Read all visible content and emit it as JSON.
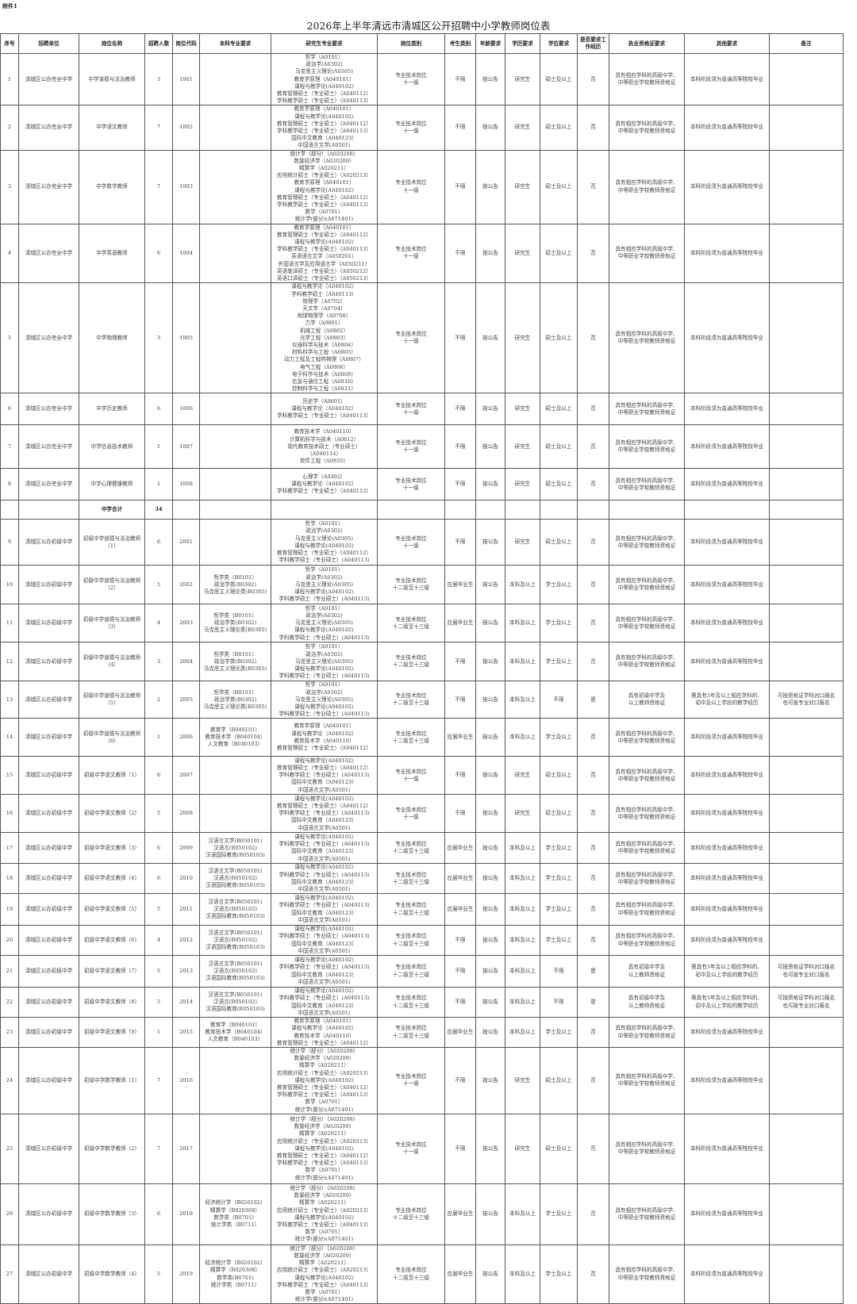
{
  "attachment_label": "附件1",
  "title": "2026年上半年清远市清城区公开招聘中小学教师岗位表",
  "headers": [
    "序号",
    "招聘单位",
    "岗位名称",
    "招聘人数",
    "岗位代码",
    "本科专业要求",
    "研究生专业要求",
    "岗位类别",
    "考生类别",
    "年龄要求",
    "学历要求",
    "学位要求",
    "是否要求工作经历",
    "执业资格证要求",
    "其他要求",
    "备注"
  ],
  "rows": [
    {
      "no": "1",
      "unit": "清城区公办完全中学",
      "post": "中学道德与法治教师",
      "num": "3",
      "code": "1001",
      "ug": [],
      "pg": [
        "哲学（A0101）",
        "政治学(A0302)",
        "马克思主义理论(A0305)",
        "教育学原理（A040101）",
        "课程与教学论(A040102)",
        "教育管理硕士（专业硕士）（A040112）",
        "学科教学硕士（专业硕士）（A040113）"
      ],
      "cat": [
        "专业技术岗位",
        "十一级"
      ],
      "cand": "不限",
      "age": "按公告",
      "edu": "研究生",
      "deg": "硕士及以上",
      "exp": "否",
      "cert": [
        "具有相应学科的高级中学、",
        "中等职业学校教师资格证"
      ],
      "other": [
        "本科阶段须为普通高等院校毕业"
      ],
      "note": []
    },
    {
      "no": "2",
      "unit": "清城区公办完全中学",
      "post": "中学语文教师",
      "num": "7",
      "code": "1002",
      "ug": [],
      "pg": [
        "教育学原理（A040101）",
        "课程与教学论(A040102)",
        "教育管理硕士（专业硕士）（A040112）",
        "学科教学硕士（专业硕士）（A040113）",
        "国际中文教育（A040123）",
        "中国语言文学(A0501)"
      ],
      "cat": [
        "专业技术岗位",
        "十一级"
      ],
      "cand": "不限",
      "age": "按公告",
      "edu": "研究生",
      "deg": "硕士及以上",
      "exp": "否",
      "cert": [
        "具有相应学科的高级中学、",
        "中等职业学校教师资格证"
      ],
      "other": [
        "本科阶段须为普通高等院校毕业"
      ],
      "note": []
    },
    {
      "no": "3",
      "unit": "清城区公办完全中学",
      "post": "中学数学教师",
      "num": "7",
      "code": "1003",
      "ug": [],
      "pg": [
        "统计学（部分）（A020208）",
        "数量经济学（A020209）",
        "精算学（A020211）",
        "应用统计硕士（专业硕士）（A020213）",
        "教育学原理（A040101）",
        "课程与教学论(A040102)",
        "教育管理硕士（专业硕士）（A040112）",
        "学科教学硕士（专业硕士）（A040113）",
        "数学（A0701）",
        "统计学(部分)(A071401)"
      ],
      "cat": [
        "专业技术岗位",
        "十一级"
      ],
      "cand": "不限",
      "age": "按公告",
      "edu": "研究生",
      "deg": "硕士及以上",
      "exp": "否",
      "cert": [
        "具有相应学科的高级中学、",
        "中等职业学校教师资格证"
      ],
      "other": [
        "本科阶段须为普通高等院校毕业"
      ],
      "note": []
    },
    {
      "no": "4",
      "unit": "清城区公办完全中学",
      "post": "中学英语教师",
      "num": "6",
      "code": "1004",
      "ug": [],
      "pg": [
        "教育学原理（A040101）",
        "教育管理硕士（专业硕士）（A040112）",
        "课程与教学论(A040102)",
        "学科教学硕士（专业硕士）（A040113）",
        "英语语言文学（A050201）",
        "外国语言学及应用语言学（A050211）",
        "英语笔译硕士（专业硕士）（A050212）",
        "英语口译硕士（专业硕士）（A050213）"
      ],
      "cat": [
        "专业技术岗位",
        "十一级"
      ],
      "cand": "不限",
      "age": "按公告",
      "edu": "研究生",
      "deg": "硕士及以上",
      "exp": "否",
      "cert": [
        "具有相应学科的高级中学、",
        "中等职业学校教师资格证"
      ],
      "other": [
        "本科阶段须为普通高等院校毕业"
      ],
      "note": []
    },
    {
      "no": "5",
      "unit": "清城区公办完全中学",
      "post": "中学物理教师",
      "num": "3",
      "code": "1005",
      "ug": [],
      "pg": [
        "课程与教学论（A040102）",
        "学科教学硕士（A040113）",
        "物理学（A0702）",
        "天文学（A0704）",
        "地球物理学（A0708）",
        "力学（A0801）",
        "机械工程（A0802）",
        "光学工程（A0803）",
        "仪器科学与技术（A0804）",
        "材料科学与工程（A0805）",
        "动力工程及工程热物理（A0807）",
        "电气工程（A0808）",
        "电子科学与技术（A0809）",
        "信息与通信工程（A0810）",
        "控制科学与工程（A0811）"
      ],
      "cat": [
        "专业技术岗位",
        "十一级"
      ],
      "cand": "不限",
      "age": "按公告",
      "edu": "研究生",
      "deg": "硕士及以上",
      "exp": "否",
      "cert": [
        "具有相应学科的高级中学、",
        "中等职业学校教师资格证"
      ],
      "other": [
        "本科阶段须为普通高等院校毕业"
      ],
      "note": []
    },
    {
      "no": "6",
      "unit": "清城区公办完全中学",
      "post": "中学历史教师",
      "num": "6",
      "code": "1006",
      "ug": [],
      "pg": [
        "历史学（A0601）",
        "课程与教学论（A040102）",
        "学科教学硕士（专业硕士）（A040113）"
      ],
      "cat": [
        "专业技术岗位",
        "十一级"
      ],
      "cand": "不限",
      "age": "按公告",
      "edu": "研究生",
      "deg": "硕士及以上",
      "exp": "否",
      "cert": [
        "具有相应学科的高级中学、",
        "中等职业学校教师资格证"
      ],
      "other": [
        "本科阶段须为普通高等院校毕业"
      ],
      "note": []
    },
    {
      "no": "7",
      "unit": "清城区公办完全中学",
      "post": "中学信息技术教师",
      "num": "1",
      "code": "1007",
      "ug": [],
      "pg": [
        "教育技术学（A040110）",
        "计算机科学与技术（A0812）",
        "现代教育技术硕士（专业硕士）",
        "（A040114）",
        "软件工程（A0835）"
      ],
      "cat": [
        "专业技术岗位",
        "十一级"
      ],
      "cand": "不限",
      "age": "按公告",
      "edu": "研究生",
      "deg": "硕士及以上",
      "exp": "否",
      "cert": [
        "具有相应学科的高级中学、",
        "中等职业学校教师资格证"
      ],
      "other": [
        "本科阶段须为普通高等院校毕业"
      ],
      "note": []
    },
    {
      "no": "8",
      "unit": "清城区公办完全中学",
      "post": "中学心理健康教师",
      "num": "1",
      "code": "1008",
      "ug": [],
      "pg": [
        "心理学（A0402）",
        "课程与教学论（A040102）",
        "学科教学硕士（专业硕士）（A040113）"
      ],
      "cat": [
        "专业技术岗位",
        "十一级"
      ],
      "cand": "不限",
      "age": "按公告",
      "edu": "研究生",
      "deg": "硕士及以上",
      "exp": "否",
      "cert": [
        "具有相应学科的高级中学、",
        "中等职业学校教师资格证"
      ],
      "other": [
        "本科阶段须为普通高等院校毕业"
      ],
      "note": []
    },
    {
      "subtotal": true,
      "label": "中学合计",
      "num": "34"
    },
    {
      "no": "9",
      "unit": "清城区公办初级中学",
      "post": "初级中学道德与法治教师（1）",
      "num": "6",
      "code": "2001",
      "ug": [],
      "pg": [
        "哲学（A0101）",
        "政治学(A0302)",
        "马克思主义理论(A0305)",
        "课程与教学论(A040102)",
        "教育管理硕士（专业硕士）（A040112）",
        "学科教学硕士（专业硕士）(A040113)"
      ],
      "cat": [
        "专业技术岗位",
        "十一级"
      ],
      "cand": "不限",
      "age": "按公告",
      "edu": "研究生",
      "deg": "硕士及以上",
      "exp": "否",
      "cert": [
        "具有相应学科的高级中学、",
        "中等职业学校教师资格证"
      ],
      "other": [
        "本科阶段须为普通高等院校毕业"
      ],
      "note": []
    },
    {
      "no": "10",
      "unit": "清城区公办初级中学",
      "post": "初级中学道德与法治教师（2）",
      "num": "5",
      "code": "2002",
      "ug": [
        "哲学类（B0101）",
        "政治学类(B0302)",
        "马克思主义理论类(B0305)"
      ],
      "pg": [
        "哲学（A0101）",
        "政治学(A0302)",
        "马克思主义理论(A0305)",
        "课程与教学论(A040102)",
        "学科教学硕士（专业硕士）(A040113)"
      ],
      "cat": [
        "专业技术岗位",
        "十二级至十三级"
      ],
      "cand": "应届毕业生",
      "age": "按公告",
      "edu": "本科及以上",
      "deg": "学士及以上",
      "exp": "否",
      "cert": [
        "具有相应学科的高级中学、",
        "中等职业学校教师资格证"
      ],
      "other": [
        "本科阶段须为普通高等院校毕业"
      ],
      "note": []
    },
    {
      "no": "11",
      "unit": "清城区公办初级中学",
      "post": "初级中学道德与法治教师（3）",
      "num": "4",
      "code": "2003",
      "ug": [
        "哲学类（B0101）",
        "政治学类(B0302)",
        "马克思主义理论类(B0305)"
      ],
      "pg": [
        "哲学（A0101）",
        "政治学(A0302)",
        "马克思主义理论(A0305)",
        "课程与教学论(A040102)",
        "学科教学硕士（专业硕士）(A040113)"
      ],
      "cat": [
        "专业技术岗位",
        "十二级至十三级"
      ],
      "cand": "应届毕业生",
      "age": "按公告",
      "edu": "本科及以上",
      "deg": "学士及以上",
      "exp": "否",
      "cert": [
        "具有相应学科的高级中学、",
        "中等职业学校教师资格证"
      ],
      "other": [
        "本科阶段须为普通高等院校毕业"
      ],
      "note": []
    },
    {
      "no": "12",
      "unit": "清城区公办初级中学",
      "post": "初级中学道德与法治教师（4）",
      "num": "3",
      "code": "2004",
      "ug": [
        "哲学类（B0101）",
        "政治学类(B0302)",
        "马克思主义理论类(B0305)"
      ],
      "pg": [
        "哲学（A0101）",
        "政治学(A0302)",
        "马克思主义理论(A0305)",
        "课程与教学论(A040102)",
        "学科教学硕士（专业硕士）(A040113)"
      ],
      "cat": [
        "专业技术岗位",
        "十二级至十三级"
      ],
      "cand": "不限",
      "age": "按公告",
      "edu": "本科及以上",
      "deg": "学士及以上",
      "exp": "否",
      "cert": [
        "具有相应学科的高级中学、",
        "中等职业学校教师资格证"
      ],
      "other": [
        "本科阶段须为普通高等院校毕业"
      ],
      "note": []
    },
    {
      "no": "13",
      "unit": "清城区公办初级中学",
      "post": "初级中学道德与法治教师（5）",
      "num": "2",
      "code": "2005",
      "ug": [
        "哲学类（B0101）",
        "政治学类(B0302)",
        "马克思主义理论类(B0305)"
      ],
      "pg": [
        "哲学（A0101）",
        "政治学(A0302)",
        "马克思主义理论(A0305)",
        "课程与教学论(A040102)",
        "学科教学硕士（专业硕士）(A040113)"
      ],
      "cat": [
        "专业技术岗位",
        "十二级至十三级"
      ],
      "cand": "不限",
      "age": "按公告",
      "edu": "本科及以上",
      "deg": "不限",
      "exp": "是",
      "cert": [
        "具有初级中学及",
        "以上教师资格证"
      ],
      "other": [
        "需具有3年及以上相应学科的、",
        "初中及以上学段的教学经历"
      ],
      "note": [
        "可按资格证学科对口报名",
        "也可按专业对口报名"
      ]
    },
    {
      "no": "14",
      "unit": "清城区公办初级中学",
      "post": "初级中学道德与法治教师（6）",
      "num": "1",
      "code": "2006",
      "ug": [
        "教育学（B040101）",
        "教育技术学（B040104）",
        "人文教育（B040103）"
      ],
      "pg": [
        "教育学原理（A040101）",
        "课程与教学论（A040102）",
        "教育技术学（A040110）",
        "教育管理硕士（专业硕士）（A040112）"
      ],
      "cat": [
        "专业技术岗位",
        "十二级至十三级"
      ],
      "cand": "应届毕业生",
      "age": "按公告",
      "edu": "本科及以上",
      "deg": "学士及以上",
      "exp": "否",
      "cert": [
        "具有相应学科的高级中学、",
        "中等职业学校教师资格证"
      ],
      "other": [
        "本科阶段须为普通高等院校毕业"
      ],
      "note": []
    },
    {
      "no": "15",
      "unit": "清城区公办初级中学",
      "post": "初级中学语文教师（1）",
      "num": "6",
      "code": "2007",
      "ug": [],
      "pg": [
        "课程与教学论(A040102)",
        "教育管理硕士（专业硕士）（A040112）",
        "学科教学硕士（专业硕士）(A040113)",
        "国际中文教育（A040123）",
        "中国语言文学(A0501)"
      ],
      "cat": [
        "专业技术岗位",
        "十一级"
      ],
      "cand": "不限",
      "age": "按公告",
      "edu": "研究生",
      "deg": "硕士及以上",
      "exp": "否",
      "cert": [
        "具有相应学科的高级中学、",
        "中等职业学校教师资格证"
      ],
      "other": [
        "本科阶段须为普通高等院校毕业"
      ],
      "note": []
    },
    {
      "no": "16",
      "unit": "清城区公办初级中学",
      "post": "初级中学语文教师（2）",
      "num": "5",
      "code": "2008",
      "ug": [],
      "pg": [
        "课程与教学论(A040102)",
        "教育管理硕士（专业硕士）（A040112）",
        "学科教学硕士（专业硕士）(A040113)",
        "国际中文教育（A040123）",
        "中国语言文学(A0501)"
      ],
      "cat": [
        "专业技术岗位",
        "十一级"
      ],
      "cand": "不限",
      "age": "按公告",
      "edu": "研究生",
      "deg": "硕士及以上",
      "exp": "否",
      "cert": [
        "具有相应学科的高级中学、",
        "中等职业学校教师资格证"
      ],
      "other": [
        "本科阶段须为普通高等院校毕业"
      ],
      "note": []
    },
    {
      "no": "17",
      "unit": "清城区公办初级中学",
      "post": "初级中学语文教师（3）",
      "num": "6",
      "code": "2009",
      "ug": [
        "汉语言文学(B050101)",
        "汉语言(B050102)",
        "汉语国际教育(B050103)"
      ],
      "pg": [
        "课程与教学论(A040102)",
        "学科教学硕士（专业硕士）(A040113)",
        "国际中文教育（A040123）",
        "中国语言文学(A0501)"
      ],
      "cat": [
        "专业技术岗位",
        "十二级至十三级"
      ],
      "cand": "应届毕业生",
      "age": "按公告",
      "edu": "本科及以上",
      "deg": "学士及以上",
      "exp": "否",
      "cert": [
        "具有相应学科的高级中学、",
        "中等职业学校教师资格证"
      ],
      "other": [
        "本科阶段须为普通高等院校毕业"
      ],
      "note": []
    },
    {
      "no": "18",
      "unit": "清城区公办初级中学",
      "post": "初级中学语文教师（4）",
      "num": "6",
      "code": "2010",
      "ug": [
        "汉语言文学(B050101)",
        "汉语言(B050102)",
        "汉语国际教育(B050103)"
      ],
      "pg": [
        "课程与教学论(A040102)",
        "学科教学硕士（专业硕士）(A040113)",
        "国际中文教育（A040123）",
        "中国语言文学(A0501)"
      ],
      "cat": [
        "专业技术岗位",
        "十二级至十三级"
      ],
      "cand": "应届毕业生",
      "age": "按公告",
      "edu": "本科及以上",
      "deg": "学士及以上",
      "exp": "否",
      "cert": [
        "具有相应学科的高级中学、",
        "中等职业学校教师资格证"
      ],
      "other": [
        "本科阶段须为普通高等院校毕业"
      ],
      "note": []
    },
    {
      "no": "19",
      "unit": "清城区公办初级中学",
      "post": "初级中学语文教师（5）",
      "num": "5",
      "code": "2011",
      "ug": [
        "汉语言文学(B050101)",
        "汉语言(B050102)",
        "汉语国际教育(B050103)"
      ],
      "pg": [
        "课程与教学论(A040102)",
        "学科教学硕士（专业硕士）(A040113)",
        "国际中文教育（A040123）",
        "中国语言文学(A0501)"
      ],
      "cat": [
        "专业技术岗位",
        "十二级至十三级"
      ],
      "cand": "应届毕业生",
      "age": "按公告",
      "edu": "本科及以上",
      "deg": "学士及以上",
      "exp": "否",
      "cert": [
        "具有相应学科的高级中学、",
        "中等职业学校教师资格证"
      ],
      "other": [
        "本科阶段须为普通高等院校毕业"
      ],
      "note": []
    },
    {
      "no": "20",
      "unit": "清城区公办初级中学",
      "post": "初级中学语文教师（6）",
      "num": "4",
      "code": "2012",
      "ug": [
        "汉语言文学(B050101)",
        "汉语言(B050102)",
        "汉语国际教育(B050103)"
      ],
      "pg": [
        "课程与教学论(A040102)",
        "学科教学硕士（专业硕士）(A040113)",
        "国际中文教育（A040123）",
        "中国语言文学(A0501)"
      ],
      "cat": [
        "专业技术岗位",
        "十二级至十三级"
      ],
      "cand": "不限",
      "age": "按公告",
      "edu": "本科及以上",
      "deg": "学士及以上",
      "exp": "否",
      "cert": [
        "具有相应学科的高级中学、",
        "中等职业学校教师资格证"
      ],
      "other": [
        "本科阶段须为普通高等院校毕业"
      ],
      "note": []
    },
    {
      "no": "21",
      "unit": "清城区公办初级中学",
      "post": "初级中学语文教师（7）",
      "num": "5",
      "code": "2013",
      "ug": [
        "汉语言文学(B050101)",
        "汉语言(B050102)",
        "汉语国际教育(B050103)"
      ],
      "pg": [
        "课程与教学论(A040102)",
        "学科教学硕士（专业硕士）(A040113)",
        "国际中文教育（A040123）",
        "中国语言文学(A0501)"
      ],
      "cat": [
        "专业技术岗位",
        "十二级至十三级"
      ],
      "cand": "不限",
      "age": "按公告",
      "edu": "本科及以上",
      "deg": "不限",
      "exp": "是",
      "cert": [
        "具有初级中学及",
        "以上教师资格证"
      ],
      "other": [
        "需具有3年及以上相应学科的、",
        "初中及以上学段的教学经历"
      ],
      "note": [
        "可按资格证学科对口报名",
        "也可按专业对口报名"
      ]
    },
    {
      "no": "22",
      "unit": "清城区公办初级中学",
      "post": "初级中学语文教师（8）",
      "num": "5",
      "code": "2014",
      "ug": [
        "汉语言文学(B050101)",
        "汉语言(B050102)",
        "汉语国际教育(B050103)"
      ],
      "pg": [
        "课程与教学论(A040102)",
        "学科教学硕士（专业硕士）(A040113)",
        "国际中文教育（A040123）",
        "中国语言文学(A0501)"
      ],
      "cat": [
        "专业技术岗位",
        "十二级至十三级"
      ],
      "cand": "不限",
      "age": "按公告",
      "edu": "本科及以上",
      "deg": "不限",
      "exp": "是",
      "cert": [
        "具有初级中学及",
        "以上教师资格证"
      ],
      "other": [
        "需具有3年及以上相应学科的、",
        "初中及以上学段的教学经历"
      ],
      "note": [
        "可按资格证学科对口报名",
        "也可按专业对口报名"
      ]
    },
    {
      "no": "23",
      "unit": "清城区公办初级中学",
      "post": "初级中学语文教师（9）",
      "num": "1",
      "code": "2015",
      "ug": [
        "教育学（B040101）",
        "教育技术学（B040104）",
        "人文教育（B040103）"
      ],
      "pg": [
        "教育学原理（A040101）",
        "课程与教学论（A040102）",
        "教育技术学（A040110）",
        "教育管理硕士（专业硕士）（A040112）"
      ],
      "cat": [
        "专业技术岗位",
        "十二级至十三级"
      ],
      "cand": "应届毕业生",
      "age": "按公告",
      "edu": "本科及以上",
      "deg": "学士及以上",
      "exp": "否",
      "cert": [
        "具有相应学科的高级中学、",
        "中等职业学校教师资格证"
      ],
      "other": [
        "本科阶段须为普通高等院校毕业"
      ],
      "note": []
    },
    {
      "no": "24",
      "unit": "清城区公办初级中学",
      "post": "初级中学数学教师（1）",
      "num": "7",
      "code": "2016",
      "ug": [],
      "pg": [
        "统计学（部分）（A020208）",
        "数量经济学（A020209）",
        "精算学（A020211）",
        "应用统计硕士（专业硕士）（A020213）",
        "课程与教学论(A040102)",
        "教育管理硕士（专业硕士）（A040112）",
        "学科教学硕士（专业硕士）（A040113）",
        "数学（A0701）",
        "统计学(部分)(A071401)"
      ],
      "cat": [
        "专业技术岗位",
        "十一级"
      ],
      "cand": "不限",
      "age": "按公告",
      "edu": "研究生",
      "deg": "硕士及以上",
      "exp": "否",
      "cert": [
        "具有相应学科的高级中学、",
        "中等职业学校教师资格证"
      ],
      "other": [
        "本科阶段须为普通高等院校毕业"
      ],
      "note": []
    },
    {
      "no": "25",
      "unit": "清城区公办初级中学",
      "post": "初级中学数学教师（2）",
      "num": "7",
      "code": "2017",
      "ug": [],
      "pg": [
        "统计学（部分）（A020208）",
        "数量经济学（A020209）",
        "精算学（A020211）",
        "应用统计硕士（专业硕士）（A020213）",
        "课程与教学论(A040102)",
        "教育管理硕士（专业硕士）（A040112）",
        "学科教学硕士（专业硕士）（A040113）",
        "数学（A0701）",
        "统计学(部分)(A071401)"
      ],
      "cat": [
        "专业技术岗位",
        "十一级"
      ],
      "cand": "不限",
      "age": "按公告",
      "edu": "研究生",
      "deg": "硕士及以上",
      "exp": "否",
      "cert": [
        "具有相应学科的高级中学、",
        "中等职业学校教师资格证"
      ],
      "other": [
        "本科阶段须为普通高等院校毕业"
      ],
      "note": []
    },
    {
      "no": "26",
      "unit": "清城区公办初级中学",
      "post": "初级中学数学教师（3）",
      "num": "6",
      "code": "2018",
      "ug": [
        "经济统计学（B020102）",
        "精算学（B020308）",
        "数学类（B0701）",
        "统计学类（B0711）"
      ],
      "pg": [
        "统计学（部分）（A020208）",
        "数量经济学（A020209）",
        "精算学（A020211）",
        "应用统计硕士（专业硕士）（A020213）",
        "课程与教学论(A040102)",
        "学科教学硕士（专业硕士）（A040113）",
        "数学（A0701）",
        "统计学(部分)(A071401)"
      ],
      "cat": [
        "专业技术岗位",
        "十二级至十三级"
      ],
      "cand": "应届毕业生",
      "age": "按公告",
      "edu": "本科及以上",
      "deg": "学士及以上",
      "exp": "否",
      "cert": [
        "具有相应学科的高级中学、",
        "中等职业学校教师资格证"
      ],
      "other": [
        "本科阶段须为普通高等院校毕业"
      ],
      "note": []
    },
    {
      "no": "27",
      "unit": "清城区公办初级中学",
      "post": "初级中学数学教师（4）",
      "num": "5",
      "code": "2019",
      "ug": [
        "经济统计学（B020102）",
        "精算学（B020308）",
        "数学类(B0701)",
        "统计学类（B0711）"
      ],
      "pg": [
        "统计学（部分）（A020208）",
        "数量经济学（A020209）",
        "精算学（A020211）",
        "应用统计硕士（专业硕士）（A020213）",
        "课程与教学论(A040102)",
        "学科教学硕士（专业硕士）（A040113）",
        "数学（A0701）",
        "统计学(部分)(A071401)"
      ],
      "cat": [
        "专业技术岗位",
        "十二级至十三级"
      ],
      "cand": "应届毕业生",
      "age": "按公告",
      "edu": "本科及以上",
      "deg": "学士及以上",
      "exp": "否",
      "cert": [
        "具有相应学科的高级中学、",
        "中等职业学校教师资格证"
      ],
      "other": [
        "本科阶段须为普通高等院校毕业"
      ],
      "note": []
    }
  ]
}
